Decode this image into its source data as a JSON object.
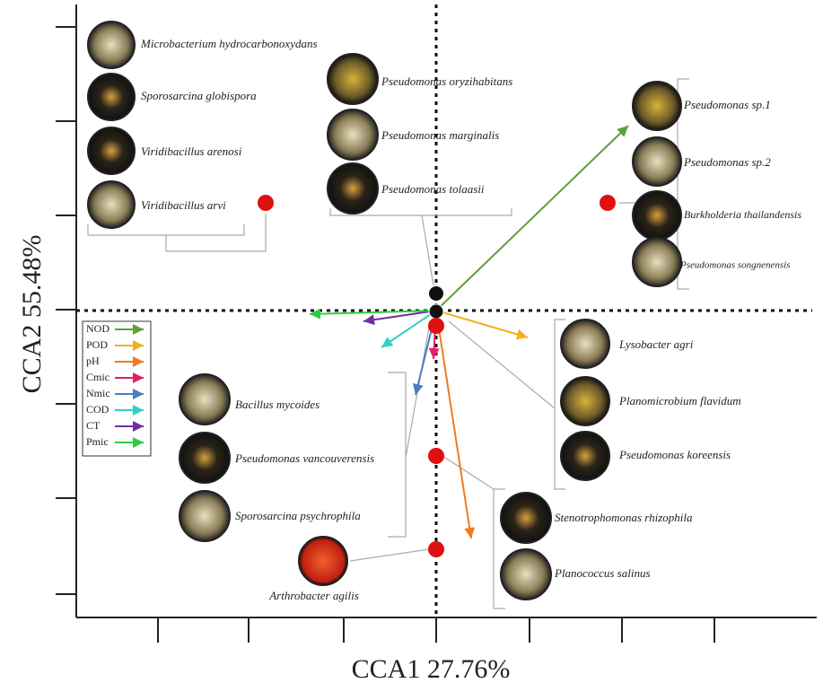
{
  "axes": {
    "x_label": "CCA1 27.76%",
    "y_label": "CCA2 55.48%"
  },
  "legend": [
    "NOD",
    "POD",
    "pH",
    "Cmic",
    "Nmic",
    "COD",
    "CT",
    "Pmic"
  ],
  "groups": [
    {
      "species": [
        "Microbacterium hydrocarbonoxydans",
        "Sporosarcina globispora",
        "Viridibacillus arenosi",
        "Viridibacillus arvi"
      ]
    },
    {
      "species": [
        "Pseudomonas oryzihabitans",
        "Pseudomonas marginalis",
        "Pseudomonas tolaasii"
      ]
    },
    {
      "species": [
        "Pseudomonas sp.1",
        "Pseudomonas sp.2",
        "Burkholderia thailandensis",
        "Pseudomonas songnenensis"
      ]
    },
    {
      "species": [
        "Lysobacter agri",
        "Planomicrobium flavidum",
        "Pseudomonas koreensis"
      ]
    },
    {
      "species": [
        "Bacillus mycoides",
        "Pseudomonas vancouverensis",
        "Sporosarcina psychrophila"
      ]
    },
    {
      "species": [
        "Arthrobacter agilis"
      ]
    },
    {
      "species": [
        "Stenotrophomonas rhizophila",
        "Planococcus salinus"
      ]
    }
  ]
}
